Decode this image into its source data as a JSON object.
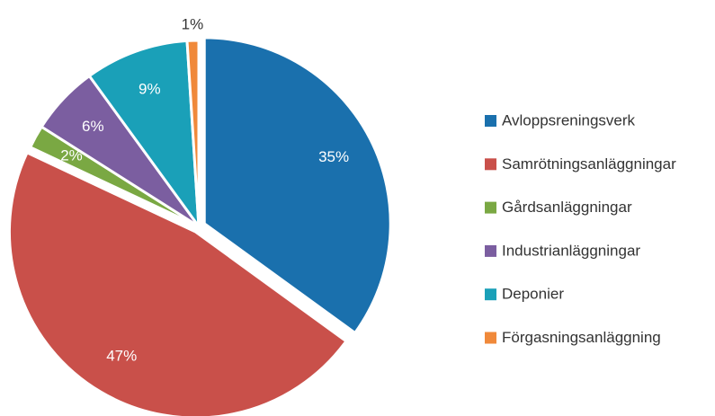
{
  "chart_data": {
    "type": "pie",
    "categories": [
      "Avloppsreningsverk",
      "Samrötningsanläggningar",
      "Gårdsanläggningar",
      "Industrianläggningar",
      "Deponier",
      "Förgasningsanläggning"
    ],
    "values": [
      35,
      47,
      2,
      6,
      9,
      1
    ],
    "value_labels": [
      "35%",
      "47%",
      "2%",
      "6%",
      "9%",
      "1%"
    ],
    "colors": [
      "#1a70ad",
      "#c9504a",
      "#7aa843",
      "#7b5ea0",
      "#1aa0b8",
      "#f0893a"
    ],
    "legend": "right"
  }
}
